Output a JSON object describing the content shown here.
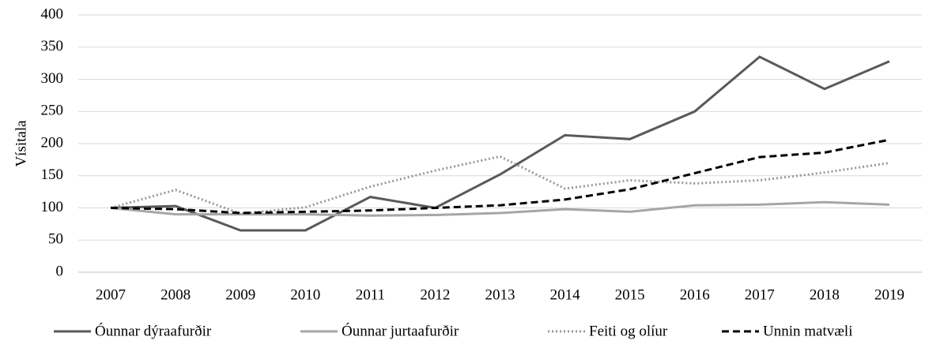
{
  "chart_data": {
    "type": "line",
    "y_label": "Vísitala",
    "categories": [
      "2007",
      "2008",
      "2009",
      "2010",
      "2011",
      "2012",
      "2013",
      "2014",
      "2015",
      "2016",
      "2017",
      "2018",
      "2019"
    ],
    "series": [
      {
        "name": "Óunnar dýraafurðir",
        "color": "#595959",
        "dash": "solid",
        "values": [
          100,
          103,
          65,
          65,
          117,
          100,
          152,
          213,
          207,
          250,
          335,
          285,
          328
        ]
      },
      {
        "name": "Óunnar jurtaafurðir",
        "color": "#a6a6a6",
        "dash": "solid",
        "values": [
          100,
          90,
          90,
          90,
          88,
          89,
          92,
          98,
          94,
          104,
          105,
          109,
          105
        ]
      },
      {
        "name": "Feiti og olíur",
        "color": "#999999",
        "dash": "dotted",
        "values": [
          100,
          128,
          91,
          101,
          133,
          158,
          180,
          130,
          143,
          138,
          143,
          155,
          170
        ]
      },
      {
        "name": "Unnin matvæli",
        "color": "#000000",
        "dash": "dashed",
        "values": [
          100,
          98,
          92,
          94,
          96,
          100,
          104,
          113,
          129,
          154,
          179,
          186,
          206
        ]
      }
    ],
    "ylim": [
      0,
      400
    ],
    "yticks": [
      0,
      50,
      100,
      150,
      200,
      250,
      300,
      350,
      400
    ],
    "grid": true,
    "legend": "bottom"
  }
}
